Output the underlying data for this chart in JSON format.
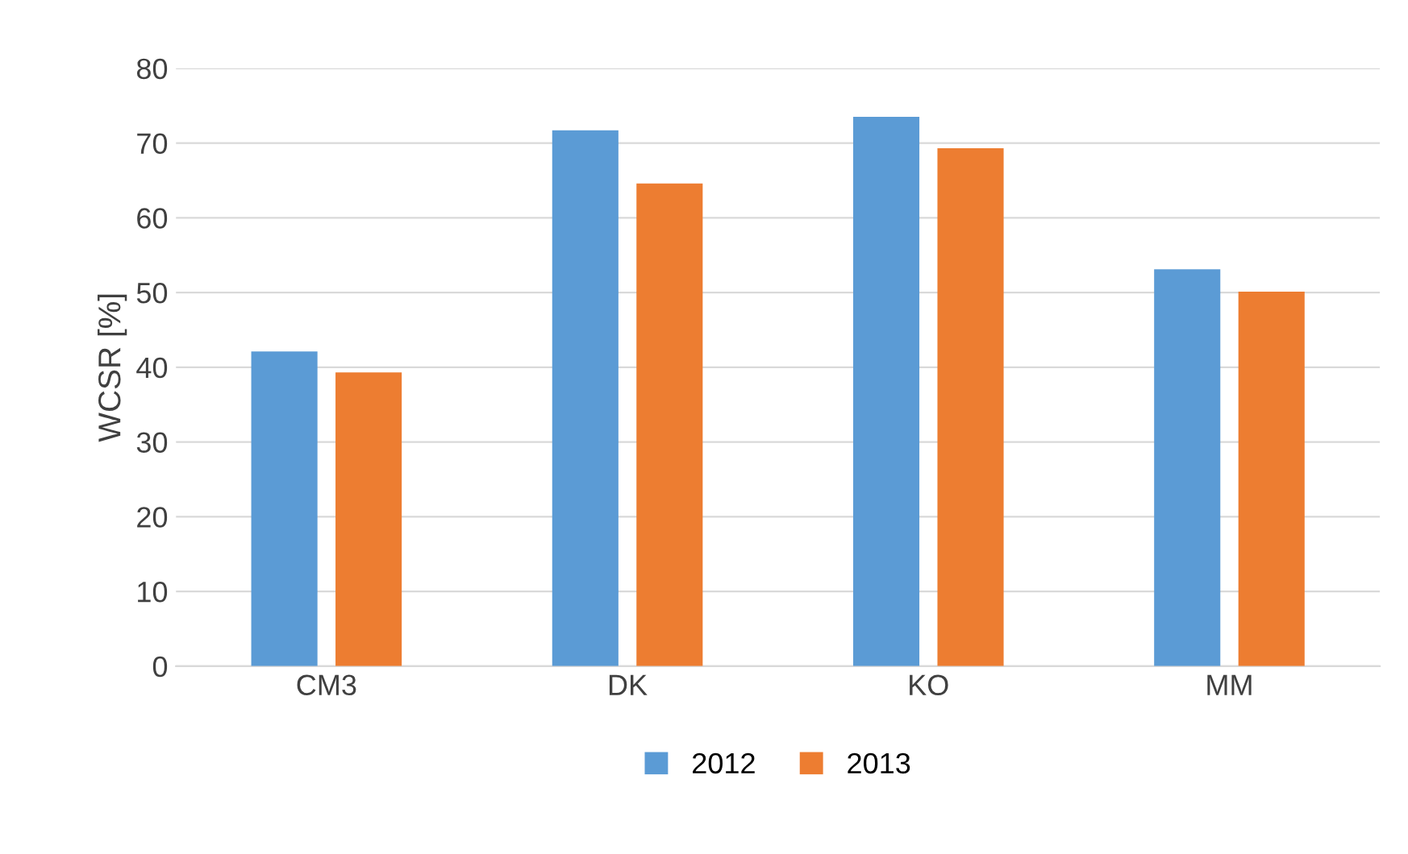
{
  "chart_data": {
    "type": "bar",
    "ylabel": "WCSR [%]",
    "categories": [
      "CM3",
      "DK",
      "KO",
      "MM"
    ],
    "series": [
      {
        "name": "2012",
        "color": "#5b9bd5",
        "values": [
          42.1,
          71.7,
          73.5,
          53.1
        ]
      },
      {
        "name": "2013",
        "color": "#ed7d31",
        "values": [
          39.3,
          64.6,
          69.3,
          50.1
        ]
      }
    ],
    "ylim": [
      0,
      80
    ],
    "yticks": [
      0,
      10,
      20,
      30,
      40,
      50,
      60,
      70,
      80
    ],
    "grid": "y",
    "legend": "bottom"
  }
}
